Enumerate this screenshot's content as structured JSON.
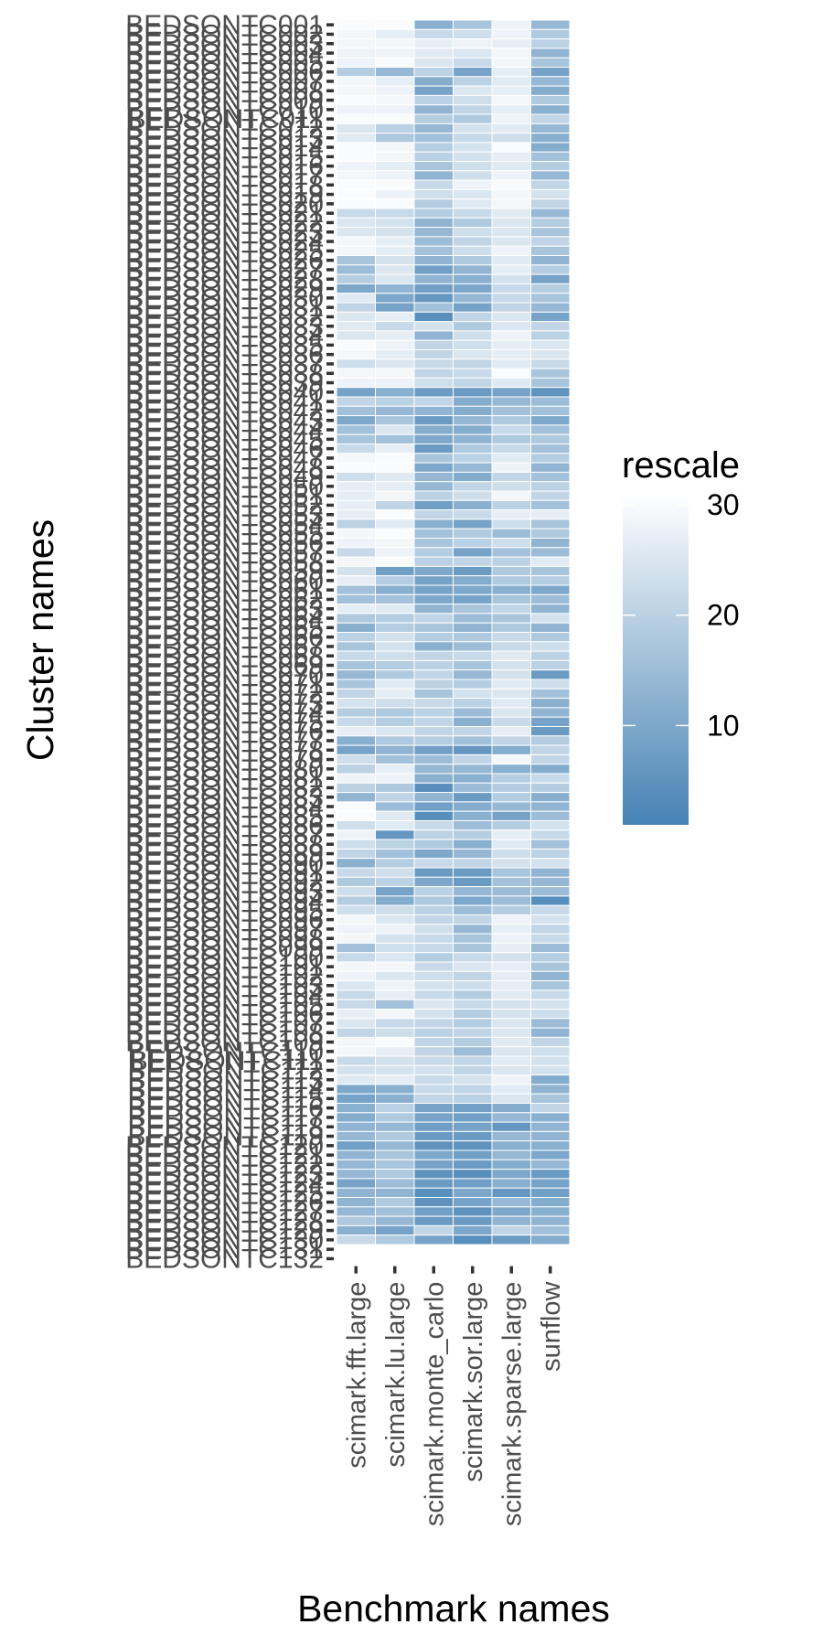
{
  "chart_data": {
    "type": "heatmap",
    "xlabel": "Benchmark names",
    "ylabel": "Cluster names",
    "columns": [
      "scimark.fft.large",
      "scimark.lu.large",
      "scimark.monte_carlo",
      "scimark.sor.large",
      "scimark.sparse.large",
      "sunflow"
    ],
    "rows": [
      "BEDSONTC001",
      "BEDSONTC002",
      "BEDSONTC003",
      "BEDSONTC004",
      "BEDSONTC005",
      "BEDSONTC006",
      "BEDSONTC007",
      "BEDSONTC008",
      "BEDSONTC009",
      "BEDSONTC010",
      "BEDSONTC011",
      "BEDSONTC012",
      "BEDSONTC013",
      "BEDSONTC014",
      "BEDSONTC015",
      "BEDSONTC016",
      "BEDSONTC017",
      "BEDSONTC018",
      "BEDSONTC019",
      "BEDSONTC020",
      "BEDSONTC021",
      "BEDSONTC022",
      "BEDSONTC023",
      "BEDSONTC024",
      "BEDSONTC025",
      "BEDSONTC026",
      "BEDSONTC027",
      "BEDSONTC028",
      "BEDSONTC029",
      "BEDSONTC030",
      "BEDSONTC031",
      "BEDSONTC032",
      "BEDSONTC033",
      "BEDSONTC034",
      "BEDSONTC035",
      "BEDSONTC036",
      "BEDSONTC037",
      "BEDSONTC038",
      "BEDSONTC039",
      "BEDSONTC040",
      "BEDSONTC041",
      "BEDSONTC042",
      "BEDSONTC043",
      "BEDSONTC044",
      "BEDSONTC045",
      "BEDSONTC046",
      "BEDSONTC047",
      "BEDSONTC048",
      "BEDSONTC049",
      "BEDSONTC050",
      "BEDSONTC051",
      "BEDSONTC052",
      "BEDSONTC053",
      "BEDSONTC054",
      "BEDSONTC055",
      "BEDSONTC056",
      "BEDSONTC057",
      "BEDSONTC058",
      "BEDSONTC059",
      "BEDSONTC060",
      "BEDSONTC061",
      "BEDSONTC062",
      "BEDSONTC063",
      "BEDSONTC064",
      "BEDSONTC065",
      "BEDSONTC066",
      "BEDSONTC067",
      "BEDSONTC068",
      "BEDSONTC069",
      "BEDSONTC070",
      "BEDSONTC071",
      "BEDSONTC072",
      "BEDSONTC073",
      "BEDSONTC074",
      "BEDSONTC075",
      "BEDSONTC076",
      "BEDSONTC077",
      "BEDSONTC078",
      "BEDSONTC079",
      "BEDSONTC080",
      "BEDSONTC081",
      "BEDSONTC082",
      "BEDSONTC083",
      "BEDSONTC084",
      "BEDSONTC085",
      "BEDSONTC086",
      "BEDSONTC087",
      "BEDSONTC088",
      "BEDSONTC089",
      "BEDSONTC090",
      "BEDSONTC091",
      "BEDSONTC092",
      "BEDSONTC093",
      "BEDSONTC094",
      "BEDSONTC095",
      "BEDSONTC096",
      "BEDSONTC097",
      "BEDSONTC098",
      "BEDSONTC099",
      "BEDSONTC100",
      "BEDSONTC101",
      "BEDSONTC102",
      "BEDSONTC103",
      "BEDSONTC104",
      "BEDSONTC105",
      "BEDSONTC106",
      "BEDSONTC107",
      "BEDSONTC108",
      "BEDSONTC109",
      "BEDSONTC110",
      "BEDSONTC111",
      "BEDSONTC112",
      "BEDSONTC113",
      "BEDSONTC114",
      "BEDSONTC115",
      "BEDSONTC116",
      "BEDSONTC117",
      "BEDSONTC118",
      "BEDSONTC119",
      "BEDSONTC120",
      "BEDSONTC121",
      "BEDSONTC122",
      "BEDSONTC123",
      "BEDSONTC124",
      "BEDSONTC125",
      "BEDSONTC126",
      "BEDSONTC127",
      "BEDSONTC128",
      "BEDSONTC129",
      "BEDSONTC130",
      "BEDSONTC131",
      "BEDSONTC132"
    ],
    "values": [
      [
        30,
        30,
        12,
        17,
        28,
        14
      ],
      [
        29,
        27,
        22,
        23,
        28,
        18
      ],
      [
        29,
        29,
        27,
        28,
        27,
        20
      ],
      [
        28,
        28,
        26,
        25,
        29,
        13
      ],
      [
        28,
        30,
        25,
        22,
        29,
        17
      ],
      [
        19,
        14,
        20,
        9,
        27,
        9
      ],
      [
        29,
        27,
        11,
        20,
        26,
        14
      ],
      [
        29,
        28,
        9,
        25,
        27,
        11
      ],
      [
        30,
        29,
        20,
        23,
        29,
        18
      ],
      [
        28,
        28,
        13,
        21,
        27,
        12
      ],
      [
        30,
        30,
        19,
        18,
        28,
        21
      ],
      [
        25,
        20,
        14,
        24,
        26,
        14
      ],
      [
        26,
        18,
        16,
        22,
        23,
        12
      ],
      [
        30,
        29,
        19,
        24,
        30,
        11
      ],
      [
        30,
        29,
        20,
        24,
        27,
        16
      ],
      [
        28,
        27,
        17,
        23,
        26,
        19
      ],
      [
        29,
        28,
        13,
        23,
        28,
        14
      ],
      [
        30,
        30,
        22,
        28,
        30,
        21
      ],
      [
        30,
        28,
        23,
        25,
        29,
        24
      ],
      [
        30,
        30,
        19,
        26,
        29,
        21
      ],
      [
        22,
        22,
        19,
        22,
        26,
        14
      ],
      [
        25,
        24,
        13,
        18,
        25,
        19
      ],
      [
        25,
        24,
        14,
        23,
        25,
        17
      ],
      [
        29,
        27,
        15,
        21,
        25,
        21
      ],
      [
        29,
        27,
        16,
        23,
        28,
        17
      ],
      [
        17,
        24,
        13,
        18,
        26,
        13
      ],
      [
        15,
        25,
        8,
        13,
        27,
        19
      ],
      [
        19,
        25,
        13,
        12,
        24,
        9
      ],
      [
        10,
        13,
        8,
        10,
        22,
        19
      ],
      [
        26,
        10,
        6,
        14,
        22,
        17
      ],
      [
        21,
        9,
        16,
        9,
        21,
        14
      ],
      [
        25,
        27,
        4,
        21,
        25,
        9
      ],
      [
        26,
        22,
        24,
        18,
        25,
        21
      ],
      [
        25,
        27,
        13,
        23,
        28,
        20
      ],
      [
        30,
        28,
        21,
        23,
        27,
        25
      ],
      [
        29,
        27,
        21,
        25,
        27,
        25
      ],
      [
        23,
        25,
        22,
        21,
        26,
        22
      ],
      [
        29,
        29,
        21,
        22,
        30,
        17
      ],
      [
        28,
        28,
        23,
        21,
        26,
        17
      ],
      [
        9,
        12,
        7,
        7,
        9,
        5
      ],
      [
        21,
        20,
        21,
        11,
        14,
        15
      ],
      [
        16,
        14,
        13,
        11,
        16,
        16
      ],
      [
        10,
        17,
        7,
        14,
        18,
        10
      ],
      [
        16,
        25,
        11,
        11,
        22,
        16
      ],
      [
        17,
        16,
        10,
        13,
        18,
        18
      ],
      [
        22,
        27,
        7,
        18,
        22,
        16
      ],
      [
        29,
        30,
        17,
        20,
        26,
        19
      ],
      [
        30,
        30,
        10,
        14,
        28,
        13
      ],
      [
        23,
        26,
        14,
        11,
        21,
        16
      ],
      [
        27,
        27,
        14,
        21,
        23,
        20
      ],
      [
        27,
        29,
        20,
        23,
        29,
        21
      ],
      [
        27,
        21,
        8,
        12,
        20,
        16
      ],
      [
        27,
        30,
        21,
        22,
        27,
        27
      ],
      [
        20,
        26,
        12,
        9,
        23,
        17
      ],
      [
        29,
        30,
        16,
        18,
        15,
        18
      ],
      [
        28,
        29,
        17,
        20,
        23,
        13
      ],
      [
        22,
        28,
        19,
        9,
        16,
        15
      ],
      [
        29,
        30,
        20,
        21,
        20,
        26
      ],
      [
        24,
        8,
        10,
        7,
        18,
        17
      ],
      [
        27,
        19,
        9,
        11,
        18,
        19
      ],
      [
        16,
        12,
        9,
        10,
        12,
        10
      ],
      [
        16,
        16,
        10,
        9,
        17,
        15
      ],
      [
        27,
        26,
        13,
        17,
        21,
        13
      ],
      [
        18,
        19,
        21,
        15,
        17,
        24
      ],
      [
        12,
        19,
        17,
        13,
        18,
        13
      ],
      [
        20,
        24,
        19,
        18,
        22,
        18
      ],
      [
        17,
        24,
        12,
        15,
        22,
        23
      ],
      [
        22,
        23,
        21,
        22,
        26,
        20
      ],
      [
        17,
        19,
        20,
        17,
        24,
        20
      ],
      [
        14,
        18,
        21,
        14,
        24,
        7
      ],
      [
        17,
        26,
        20,
        19,
        26,
        23
      ],
      [
        21,
        27,
        17,
        24,
        25,
        16
      ],
      [
        24,
        23,
        22,
        20,
        26,
        12
      ],
      [
        19,
        18,
        20,
        15,
        25,
        13
      ],
      [
        22,
        19,
        21,
        12,
        22,
        9
      ],
      [
        27,
        25,
        21,
        21,
        27,
        7
      ],
      [
        12,
        18,
        19,
        16,
        21,
        19
      ],
      [
        9,
        13,
        8,
        6,
        11,
        21
      ],
      [
        23,
        16,
        15,
        21,
        29,
        21
      ],
      [
        20,
        27,
        14,
        14,
        12,
        11
      ],
      [
        28,
        28,
        12,
        12,
        19,
        22
      ],
      [
        20,
        18,
        4,
        15,
        19,
        19
      ],
      [
        13,
        21,
        13,
        7,
        19,
        12
      ],
      [
        30,
        15,
        8,
        11,
        14,
        13
      ],
      [
        30,
        26,
        4,
        12,
        9,
        15
      ],
      [
        23,
        26,
        22,
        15,
        19,
        24
      ],
      [
        28,
        6,
        20,
        19,
        27,
        22
      ],
      [
        23,
        20,
        18,
        12,
        26,
        16
      ],
      [
        21,
        16,
        10,
        14,
        23,
        20
      ],
      [
        12,
        19,
        22,
        21,
        24,
        24
      ],
      [
        22,
        23,
        7,
        7,
        17,
        13
      ],
      [
        18,
        20,
        10,
        7,
        16,
        14
      ],
      [
        23,
        9,
        20,
        14,
        15,
        15
      ],
      [
        19,
        11,
        18,
        10,
        15,
        4
      ],
      [
        23,
        23,
        20,
        15,
        19,
        22
      ],
      [
        29,
        25,
        21,
        21,
        28,
        24
      ],
      [
        28,
        28,
        23,
        14,
        27,
        21
      ],
      [
        29,
        24,
        22,
        17,
        28,
        22
      ],
      [
        16,
        23,
        22,
        17,
        27,
        15
      ],
      [
        22,
        25,
        19,
        22,
        24,
        19
      ],
      [
        29,
        29,
        22,
        25,
        27,
        17
      ],
      [
        28,
        25,
        23,
        21,
        27,
        13
      ],
      [
        25,
        28,
        24,
        23,
        27,
        17
      ],
      [
        22,
        27,
        22,
        19,
        26,
        22
      ],
      [
        22,
        16,
        25,
        22,
        24,
        24
      ],
      [
        27,
        29,
        24,
        19,
        24,
        23
      ],
      [
        25,
        22,
        21,
        19,
        25,
        15
      ],
      [
        21,
        23,
        20,
        21,
        25,
        13
      ],
      [
        29,
        30,
        21,
        19,
        26,
        21
      ],
      [
        29,
        27,
        21,
        15,
        25,
        23
      ],
      [
        22,
        24,
        22,
        21,
        26,
        24
      ],
      [
        24,
        24,
        24,
        21,
        25,
        24
      ],
      [
        26,
        27,
        22,
        24,
        28,
        11
      ],
      [
        10,
        12,
        22,
        21,
        26,
        13
      ],
      [
        9,
        12,
        21,
        20,
        25,
        17
      ],
      [
        12,
        20,
        9,
        8,
        11,
        21
      ],
      [
        11,
        18,
        9,
        8,
        14,
        12
      ],
      [
        13,
        14,
        8,
        9,
        6,
        13
      ],
      [
        14,
        18,
        7,
        7,
        14,
        13
      ],
      [
        8,
        14,
        5,
        5,
        12,
        12
      ],
      [
        13,
        17,
        10,
        8,
        14,
        10
      ],
      [
        14,
        17,
        9,
        7,
        11,
        14
      ],
      [
        14,
        18,
        5,
        4,
        10,
        7
      ],
      [
        9,
        15,
        7,
        8,
        12,
        9
      ],
      [
        13,
        13,
        4,
        10,
        6,
        8
      ],
      [
        13,
        18,
        5,
        9,
        14,
        11
      ],
      [
        14,
        16,
        8,
        5,
        10,
        12
      ],
      [
        18,
        14,
        7,
        7,
        13,
        13
      ],
      [
        12,
        9,
        21,
        10,
        21,
        16
      ],
      [
        22,
        18,
        9,
        4,
        7,
        11
      ]
    ],
    "colorbar": {
      "title": "rescale",
      "ticks": [
        10,
        20,
        30
      ],
      "range": [
        1,
        31
      ],
      "low_color": "#4682B4",
      "high_color": "#FFFFFF"
    }
  }
}
